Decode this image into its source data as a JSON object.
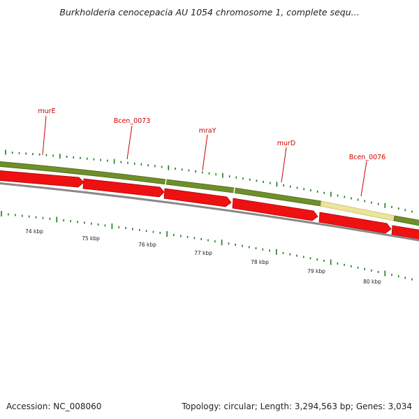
{
  "title": "Burkholderia cenocepacia AU 1054 chromosome 1, complete sequ...",
  "footer": {
    "accession": "Accession: NC_008060",
    "summary": "Topology: circular; Length: 3,294,563 bp; Genes: 3,034"
  },
  "colors": {
    "gene_track": "#6e8f2a",
    "gene_track_highlight": "#ece49a",
    "cds": "#ee1111",
    "backbone": "#888888",
    "tick": "#1e7a1e",
    "label": "#cc0000"
  },
  "gene_labels": [
    {
      "id": "murE",
      "text": "murE"
    },
    {
      "id": "bcen0073",
      "text": "Bcen_0073"
    },
    {
      "id": "mraY",
      "text": "mraY"
    },
    {
      "id": "murD",
      "text": "murD"
    },
    {
      "id": "bcen0076",
      "text": "Bcen_0076"
    }
  ],
  "kbp_labels": [
    "74 kbp",
    "75 kbp",
    "76 kbp",
    "77 kbp",
    "78 kbp",
    "79 kbp",
    "80 kbp"
  ]
}
